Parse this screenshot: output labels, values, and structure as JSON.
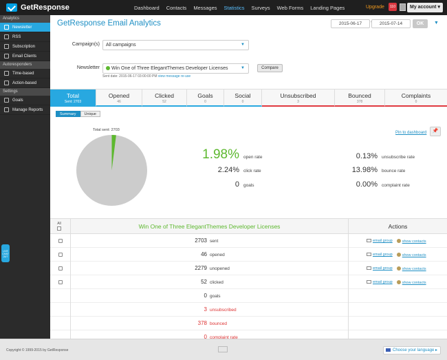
{
  "topbar": {
    "brand": "GetResponse",
    "nav": [
      "Dashboard",
      "Contacts",
      "Messages",
      "Statistics",
      "Surveys",
      "Web Forms",
      "Landing Pages"
    ],
    "active_nav": "Statistics",
    "upgrade": "Upgrade",
    "notifications": "110",
    "account": "My account"
  },
  "sidebar": {
    "sections": [
      {
        "head": "Analytics",
        "items": [
          {
            "label": "Newsletter",
            "icon": "envelope-icon",
            "active": true
          },
          {
            "label": "RSS",
            "icon": "rss-icon"
          },
          {
            "label": "Subscription",
            "icon": "person-icon"
          },
          {
            "label": "Email Clients",
            "icon": "monitor-icon"
          }
        ]
      },
      {
        "head": "Autoresponders",
        "items": [
          {
            "label": "Time-based",
            "icon": "calendar-icon"
          },
          {
            "label": "Action-based",
            "icon": "gear-icon"
          }
        ]
      },
      {
        "head": "Settings",
        "items": [
          {
            "label": "Goals",
            "icon": "trophy-icon"
          },
          {
            "label": "Manage Reports",
            "icon": "document-icon"
          }
        ]
      }
    ],
    "livechat": "LIVE CHAT 24/7"
  },
  "main": {
    "title": "GetResponse Email Analytics",
    "date_from": "2015-06-17",
    "date_sep": "-",
    "date_to": "2015-07-14",
    "ok": "OK",
    "campaigns_label": "Campaign(s)",
    "campaigns_value": "All campaigns",
    "newsletter_label": "Newsletter",
    "newsletter_value": "Win One of Three ElegantThemes Developer Licenses",
    "compare": "Compare",
    "sent_date": "Sent date: 2015-06-17 03:00:00 PM",
    "view_message": "view message",
    "reuse": "re-use"
  },
  "tabs": [
    {
      "label": "Total",
      "sub": "Sent: 2703",
      "active": true
    },
    {
      "label": "Opened",
      "sub": "46"
    },
    {
      "label": "Clicked",
      "sub": "52"
    },
    {
      "label": "Goals",
      "sub": "0"
    },
    {
      "label": "Social",
      "sub": "0"
    },
    {
      "label": "Unsubscribed",
      "sub": "3",
      "red": true
    },
    {
      "label": "Bounced",
      "sub": "378",
      "red": true
    },
    {
      "label": "Complaints",
      "sub": "0",
      "red": true
    }
  ],
  "view_toggle": {
    "summary": "Summary",
    "unique": "Unique"
  },
  "summary": {
    "total_sent": "Total sent: 2703",
    "pin": "Pin to dashboard",
    "open_fraction": 0.0198,
    "left_stats": [
      {
        "value": "1.98%",
        "label": "open rate",
        "highlight": true
      },
      {
        "value": "2.24%",
        "label": "click rate"
      },
      {
        "value": "0",
        "label": "goals"
      }
    ],
    "right_stats": [
      {
        "value": "0.13%",
        "label": "unsubscribe rate"
      },
      {
        "value": "13.98%",
        "label": "bounce rate"
      },
      {
        "value": "0.00%",
        "label": "complaint rate"
      }
    ],
    "colors": {
      "pie_base": "#cccccc",
      "pie_open": "#5db82f"
    }
  },
  "table": {
    "all": "All",
    "title": "Win One of Three ElegantThemes Developer Licenses",
    "actions": "Actions",
    "rows": [
      {
        "num": "2703",
        "label": "sent",
        "checkbox": true,
        "actions": true
      },
      {
        "num": "46",
        "label": "opened",
        "checkbox": true,
        "actions": true
      },
      {
        "num": "2279",
        "label": "unopened",
        "checkbox": true,
        "actions": true
      },
      {
        "num": "52",
        "label": "clicked",
        "checkbox": true,
        "actions": true
      },
      {
        "num": "0",
        "label": "goals"
      },
      {
        "num": "3",
        "label": "unsubscribed",
        "red": true
      },
      {
        "num": "378",
        "label": "bounced",
        "red": true
      },
      {
        "num": "0",
        "label": "complaint rate",
        "red": true
      }
    ],
    "email_group": "email group",
    "show_contacts": "show contacts"
  },
  "footer": {
    "copyright": "Copyright © 1999-2015 by GetResponse",
    "language": "Choose your language ▸"
  }
}
